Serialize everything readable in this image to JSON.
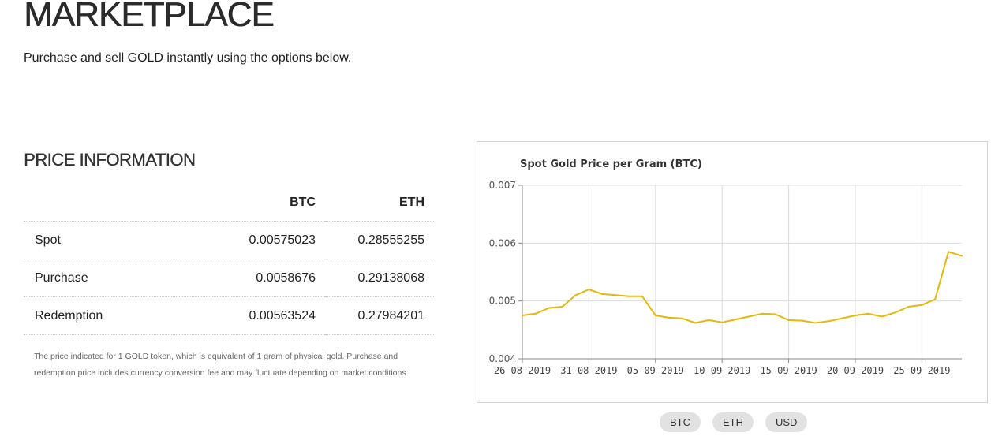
{
  "header": {
    "title": "MARKETPLACE",
    "subtitle": "Purchase and sell GOLD instantly using the options below."
  },
  "price_info": {
    "title": "PRICE INFORMATION",
    "columns": [
      "BTC",
      "ETH"
    ],
    "rows": [
      {
        "label": "Spot",
        "btc": "0.00575023",
        "eth": "0.28555255"
      },
      {
        "label": "Purchase",
        "btc": "0.0058676",
        "eth": "0.29138068"
      },
      {
        "label": "Redemption",
        "btc": "0.00563524",
        "eth": "0.27984201"
      }
    ],
    "note": "The price indicated for 1 GOLD token, which is equivalent of 1 gram of physical gold. Purchase and redemption price includes currency conversion fee and may fluctuate depending on market conditions."
  },
  "currency_buttons": [
    "BTC",
    "ETH",
    "USD"
  ],
  "chart_data": {
    "type": "line",
    "title": "Spot Gold Price per Gram (BTC)",
    "ylim": [
      0.004,
      0.007
    ],
    "yticks": [
      "0.004",
      "0.005",
      "0.006",
      "0.007"
    ],
    "x_ticks": [
      "26-08-2019",
      "31-08-2019",
      "05-09-2019",
      "10-09-2019",
      "15-09-2019",
      "20-09-2019",
      "25-09-2019"
    ],
    "line_color": "#e3b90c",
    "grid": true,
    "series": [
      {
        "x": [
          "2019-08-26",
          "2019-08-27",
          "2019-08-28",
          "2019-08-29",
          "2019-08-30",
          "2019-08-31",
          "2019-09-01",
          "2019-09-02",
          "2019-09-03",
          "2019-09-04",
          "2019-09-05",
          "2019-09-06",
          "2019-09-07",
          "2019-09-08",
          "2019-09-09",
          "2019-09-10",
          "2019-09-11",
          "2019-09-12",
          "2019-09-13",
          "2019-09-14",
          "2019-09-15",
          "2019-09-16",
          "2019-09-17",
          "2019-09-18",
          "2019-09-19",
          "2019-09-20",
          "2019-09-21",
          "2019-09-22",
          "2019-09-23",
          "2019-09-24",
          "2019-09-25",
          "2019-09-26",
          "2019-09-27",
          "2019-09-28"
        ],
        "values": [
          0.00475,
          0.00478,
          0.00488,
          0.0049,
          0.0051,
          0.0052,
          0.00512,
          0.0051,
          0.00508,
          0.00508,
          0.00475,
          0.00471,
          0.0047,
          0.00462,
          0.00467,
          0.00463,
          0.00468,
          0.00473,
          0.00478,
          0.00477,
          0.00467,
          0.00466,
          0.00462,
          0.00465,
          0.0047,
          0.00475,
          0.00478,
          0.00473,
          0.0048,
          0.0049,
          0.00493,
          0.00503,
          0.00585,
          0.00578
        ]
      }
    ]
  }
}
